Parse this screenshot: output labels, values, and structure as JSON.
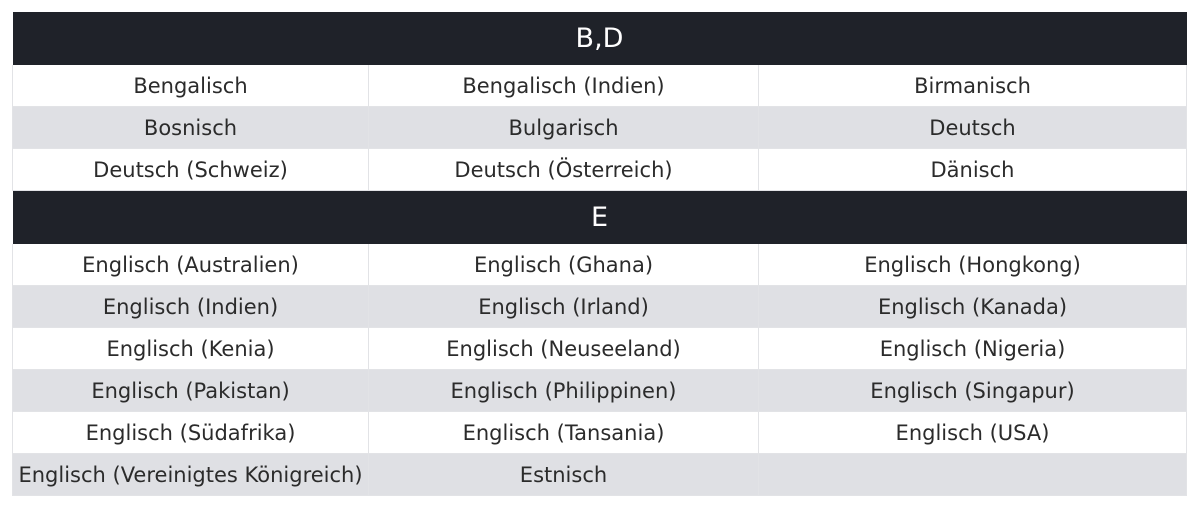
{
  "groups": [
    {
      "title": "B,D",
      "rows": [
        [
          "Bengalisch",
          "Bengalisch (Indien)",
          "Birmanisch"
        ],
        [
          "Bosnisch",
          "Bulgarisch",
          "Deutsch"
        ],
        [
          "Deutsch (Schweiz)",
          "Deutsch (Österreich)",
          "Dänisch"
        ]
      ]
    },
    {
      "title": "E",
      "rows": [
        [
          "Englisch (Australien)",
          "Englisch (Ghana)",
          "Englisch (Hongkong)"
        ],
        [
          "Englisch (Indien)",
          "Englisch (Irland)",
          "Englisch (Kanada)"
        ],
        [
          "Englisch (Kenia)",
          "Englisch (Neuseeland)",
          "Englisch (Nigeria)"
        ],
        [
          "Englisch (Pakistan)",
          "Englisch (Philippinen)",
          "Englisch (Singapur)"
        ],
        [
          "Englisch (Südafrika)",
          "Englisch (Tansania)",
          "Englisch (USA)"
        ],
        [
          "Englisch (Vereinigtes Königreich)",
          "Estnisch",
          ""
        ]
      ]
    }
  ],
  "colors": {
    "header_bg": "#1f2229",
    "header_text": "#ffffff",
    "row_odd_bg": "#ffffff",
    "row_even_bg": "#dfe0e4",
    "cell_text": "#2b2b2b"
  }
}
